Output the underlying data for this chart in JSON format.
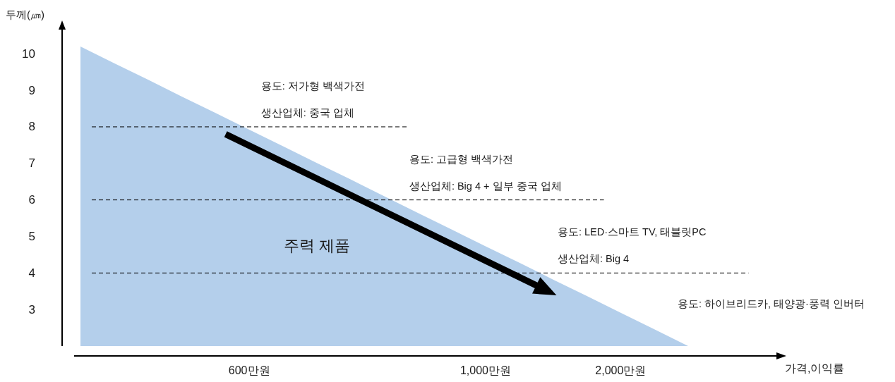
{
  "chart_data": {
    "type": "area",
    "ylabel": "두께(㎛)",
    "categories": [
      null,
      null,
      null,
      null,
      null,
      "600만원",
      null,
      null,
      null,
      null,
      null,
      null,
      "1,000만원",
      null,
      null,
      null,
      "2,000만원",
      null,
      null
    ],
    "values": [
      10.2,
      9.74,
      9.29,
      8.83,
      8.38,
      7.92,
      7.47,
      7.01,
      6.56,
      6.1,
      5.64,
      5.19,
      4.73,
      4.28,
      3.82,
      3.37,
      2.91,
      2.46,
      2.0
    ],
    "color": "#b4cfeb",
    "ylim": [
      2,
      10.7
    ],
    "yticks": [
      3,
      4,
      5,
      6,
      7,
      8,
      9,
      10
    ],
    "ref_lines": [
      {
        "axis": "y",
        "value": 8,
        "label": "용도: 저가형 백색가전\n생산업체: 중국 업체",
        "color": "#000000",
        "line_style": "dashed"
      },
      {
        "axis": "y",
        "value": 6,
        "label": "용도: 고급형 백색가전\n생산업체: Big 4 + 일부 중국 업체",
        "color": "#000000",
        "line_style": "dashed"
      },
      {
        "axis": "y",
        "value": 4,
        "label": "용도: LED·스마트 TV, 태블릿PC\n생산업체: Big 4",
        "color": "#000000",
        "line_style": "dashed"
      }
    ],
    "annotations": [
      "주력 제품",
      "용도: 하이브리드카, 태양광·풍력 인버터",
      "가격,이익률"
    ]
  }
}
